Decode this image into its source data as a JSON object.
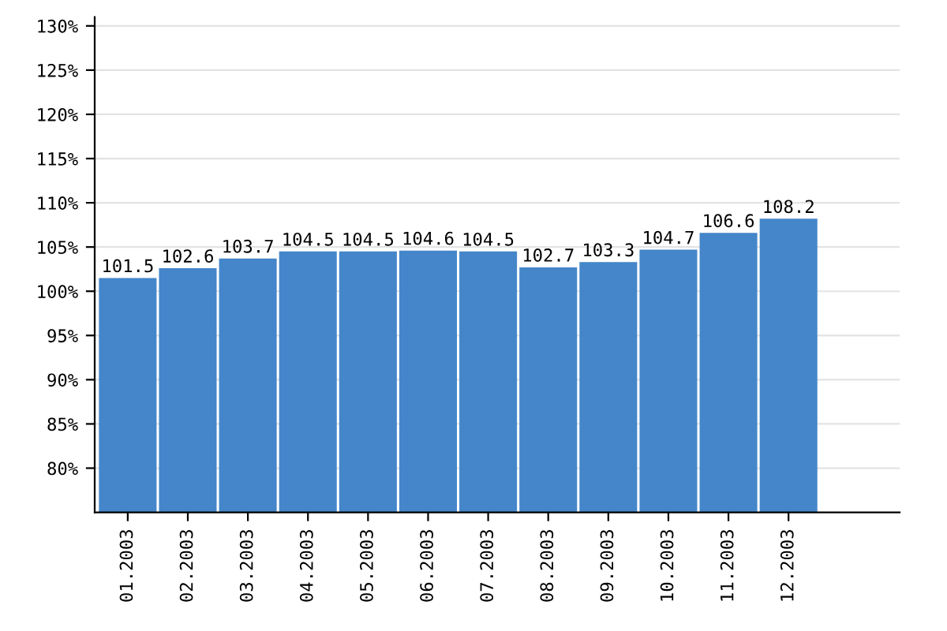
{
  "chart_data": {
    "type": "bar",
    "categories": [
      "01.2003",
      "02.2003",
      "03.2003",
      "04.2003",
      "05.2003",
      "06.2003",
      "07.2003",
      "08.2003",
      "09.2003",
      "10.2003",
      "11.2003",
      "12.2003"
    ],
    "values": [
      101.5,
      102.6,
      103.7,
      104.5,
      104.5,
      104.6,
      104.5,
      102.7,
      103.3,
      104.7,
      106.6,
      108.2
    ],
    "color": "#4486c9",
    "ylim": [
      75,
      131
    ],
    "yticks": [
      {
        "value": 80,
        "label": "80%"
      },
      {
        "value": 85,
        "label": "85%"
      },
      {
        "value": 90,
        "label": "90%"
      },
      {
        "value": 95,
        "label": "95%"
      },
      {
        "value": 100,
        "label": "100%"
      },
      {
        "value": 105,
        "label": "105%"
      },
      {
        "value": 110,
        "label": "110%"
      },
      {
        "value": 115,
        "label": "115%"
      },
      {
        "value": 120,
        "label": "120%"
      },
      {
        "value": 125,
        "label": "125%"
      },
      {
        "value": 130,
        "label": "130%"
      }
    ],
    "grid": "y",
    "data_labels": true
  }
}
